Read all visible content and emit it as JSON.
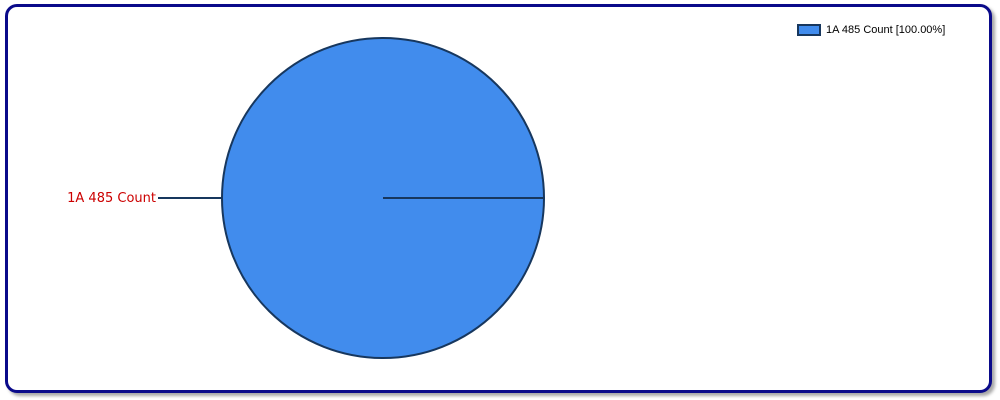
{
  "chart_data": {
    "type": "pie",
    "title": "",
    "slices": [
      {
        "label": "1A 485 Count",
        "value": 100,
        "percent_label": "100.00%",
        "legend_text": "1A 485 Count [100.00%]",
        "color": "#418ced"
      }
    ],
    "legend_placement": "top-right",
    "slice_outline_color": "#17375e",
    "label_color": "#cc0000"
  },
  "frame": {
    "border_color": "#0a0a8a"
  }
}
